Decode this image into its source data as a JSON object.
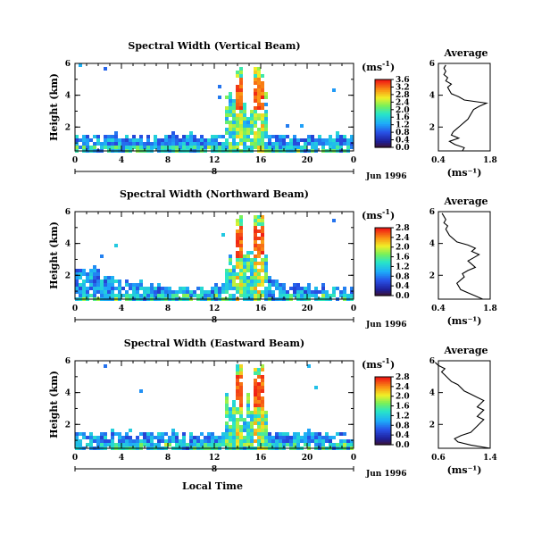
{
  "figure": {
    "xlabel": "Local Time",
    "date_label": "Jun 1996",
    "day_label": "8",
    "colorbar_unit_base": "(ms",
    "colorbar_unit_sup": "-1",
    "colorbar_unit_close": ")"
  },
  "chart_data": [
    {
      "type": "heatmap",
      "title": "Spectral Width (Vertical Beam)",
      "ylabel": "Height (km)",
      "xlim": [
        0,
        24
      ],
      "xticks": [
        "0",
        "4",
        "8",
        "12",
        "16",
        "20",
        "0"
      ],
      "ylim": [
        0.5,
        6
      ],
      "yticks": [
        "2",
        "4",
        "6"
      ],
      "colorbar": {
        "min": 0.0,
        "max": 3.6,
        "ticks": [
          "0.0",
          "0.4",
          "0.8",
          "1.2",
          "1.6",
          "2.0",
          "2.4",
          "2.8",
          "3.2",
          "3.6"
        ]
      },
      "average": {
        "title": "Average",
        "xlabel": "(ms⁻¹)",
        "xlim": [
          0.4,
          1.8
        ],
        "xticks": [
          "0.4",
          "1.8"
        ],
        "height": [
          0.5,
          0.7,
          0.9,
          1.1,
          1.3,
          1.5,
          1.7,
          1.9,
          2.1,
          2.3,
          2.5,
          2.7,
          2.9,
          3.1,
          3.3,
          3.5,
          3.7,
          3.9,
          4.1,
          4.3,
          4.5,
          4.7,
          4.9,
          5.1,
          5.3,
          5.5,
          5.7,
          5.9
        ],
        "width": [
          1.05,
          1.1,
          0.85,
          0.7,
          0.95,
          0.75,
          0.8,
          0.9,
          1.0,
          1.1,
          1.2,
          1.25,
          1.3,
          1.35,
          1.5,
          1.7,
          1.1,
          0.95,
          0.75,
          0.7,
          0.65,
          0.75,
          0.6,
          0.65,
          0.55,
          0.6,
          0.55,
          0.6
        ]
      }
    },
    {
      "type": "heatmap",
      "title": "Spectral Width (Northward Beam)",
      "ylabel": "Height (km)",
      "xlim": [
        0,
        24
      ],
      "xticks": [
        "0",
        "4",
        "8",
        "12",
        "16",
        "20",
        "0"
      ],
      "ylim": [
        0.5,
        6
      ],
      "yticks": [
        "2",
        "4",
        "6"
      ],
      "colorbar": {
        "min": 0.0,
        "max": 2.8,
        "ticks": [
          "0.0",
          "0.4",
          "0.8",
          "1.2",
          "1.6",
          "2.0",
          "2.4",
          "2.8"
        ]
      },
      "average": {
        "title": "Average",
        "xlabel": "(ms⁻¹)",
        "xlim": [
          0.4,
          1.8
        ],
        "xticks": [
          "0.4",
          "1.8"
        ],
        "height": [
          0.5,
          0.7,
          0.9,
          1.1,
          1.3,
          1.5,
          1.7,
          1.9,
          2.1,
          2.3,
          2.5,
          2.7,
          2.9,
          3.1,
          3.3,
          3.5,
          3.7,
          3.9,
          4.1,
          4.3,
          4.5,
          4.7,
          4.9,
          5.1,
          5.3,
          5.5,
          5.7,
          5.9
        ],
        "width": [
          1.6,
          1.4,
          1.2,
          1.0,
          0.95,
          0.9,
          1.0,
          1.1,
          1.05,
          1.2,
          1.4,
          1.3,
          1.2,
          1.35,
          1.5,
          1.3,
          1.4,
          1.2,
          0.9,
          0.8,
          0.7,
          0.65,
          0.6,
          0.65,
          0.55,
          0.6,
          0.55,
          0.5
        ]
      }
    },
    {
      "type": "heatmap",
      "title": "Spectral Width (Eastward Beam)",
      "ylabel": "Height (km)",
      "xlim": [
        0,
        24
      ],
      "xticks": [
        "0",
        "4",
        "8",
        "12",
        "16",
        "20",
        "0"
      ],
      "ylim": [
        0.5,
        6
      ],
      "yticks": [
        "2",
        "4",
        "6"
      ],
      "colorbar": {
        "min": 0.0,
        "max": 2.8,
        "ticks": [
          "0.0",
          "0.4",
          "0.8",
          "1.2",
          "1.6",
          "2.0",
          "2.4",
          "2.8"
        ]
      },
      "average": {
        "title": "Average",
        "xlabel": "(ms⁻¹)",
        "xlim": [
          0.6,
          1.4
        ],
        "xticks": [
          "0.6",
          "1.4"
        ],
        "height": [
          0.5,
          0.7,
          0.9,
          1.1,
          1.3,
          1.5,
          1.7,
          1.9,
          2.1,
          2.3,
          2.5,
          2.7,
          2.9,
          3.1,
          3.3,
          3.5,
          3.7,
          3.9,
          4.1,
          4.3,
          4.5,
          4.7,
          4.9,
          5.1,
          5.3,
          5.5,
          5.7,
          5.9
        ],
        "width": [
          1.4,
          1.1,
          0.9,
          0.85,
          0.95,
          1.1,
          1.15,
          1.2,
          1.25,
          1.3,
          1.2,
          1.25,
          1.3,
          1.2,
          1.25,
          1.3,
          1.2,
          1.1,
          1.0,
          0.95,
          0.9,
          0.8,
          0.75,
          0.7,
          0.65,
          0.7,
          0.6,
          0.55
        ]
      }
    }
  ]
}
